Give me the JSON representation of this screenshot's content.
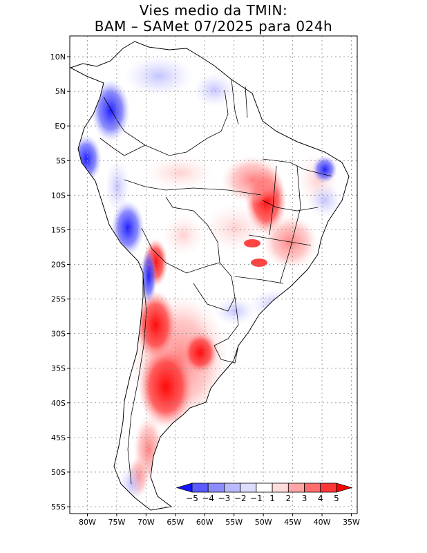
{
  "title_line1": "Vies medio da TMIN:",
  "title_line2": "BAM – SAMet 07/2025  para 024h",
  "map": {
    "lat_labels": [
      "10N",
      "5N",
      "EQ",
      "5S",
      "10S",
      "15S",
      "20S",
      "25S",
      "30S",
      "35S",
      "40S",
      "45S",
      "50S",
      "55S"
    ],
    "lat_values": [
      10,
      5,
      0,
      -5,
      -10,
      -15,
      -20,
      -25,
      -30,
      -35,
      -40,
      -45,
      -50,
      -55
    ],
    "lon_labels": [
      "80W",
      "75W",
      "70W",
      "65W",
      "60W",
      "55W",
      "50W",
      "45W",
      "40W",
      "35W"
    ],
    "lon_values": [
      -80,
      -75,
      -70,
      -65,
      -60,
      -55,
      -50,
      -45,
      -40,
      -35
    ],
    "lat_range": [
      -56,
      13
    ],
    "lon_range": [
      -83,
      -34
    ]
  },
  "colorbar": {
    "labels": [
      "-5",
      "-4",
      "-3",
      "-2",
      "-1",
      "1",
      "2",
      "3",
      "4",
      "5"
    ],
    "colors": [
      "#1414ff",
      "#5a5aff",
      "#8c8cff",
      "#b9b9ff",
      "#dcdcff",
      "#ffffff",
      "#ffdcdc",
      "#ffa5a5",
      "#ff6e6e",
      "#ff3737",
      "#ff0000"
    ]
  }
}
